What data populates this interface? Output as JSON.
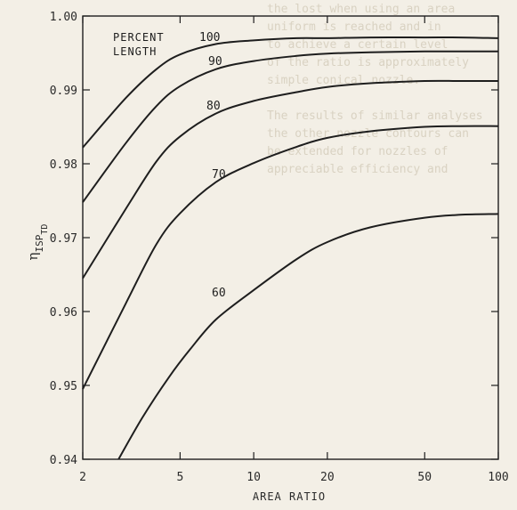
{
  "chart_data": {
    "type": "line",
    "title": "",
    "xlabel": "AREA RATIO",
    "ylabel": "η",
    "ylabel_sub": "ISP",
    "ylabel_subsub": "TD",
    "xscale": "log",
    "xlim": [
      2,
      100
    ],
    "ylim": [
      0.94,
      1.0
    ],
    "x_ticks": [
      2,
      5,
      10,
      20,
      50,
      100
    ],
    "x_tick_labels": [
      "2",
      "5",
      "10",
      "20",
      "50",
      "100"
    ],
    "y_ticks": [
      0.94,
      0.95,
      0.96,
      0.97,
      0.98,
      0.99,
      1.0
    ],
    "y_tick_labels": [
      "0.94",
      "0.95",
      "0.96",
      "0.97",
      "0.98",
      "0.99",
      "1.00"
    ],
    "grid": false,
    "legend_title_line1": "PERCENT",
    "legend_title_line2": "LENGTH",
    "series": [
      {
        "name": "100",
        "x": [
          2,
          3,
          4,
          5,
          7,
          10,
          15,
          20,
          30,
          50,
          70,
          100
        ],
        "y": [
          0.9822,
          0.9889,
          0.9928,
          0.9948,
          0.9962,
          0.9967,
          0.997,
          0.997,
          0.9971,
          0.9971,
          0.9971,
          0.997
        ]
      },
      {
        "name": "90",
        "x": [
          2,
          3,
          4,
          5,
          7,
          10,
          15,
          20,
          30,
          50,
          70,
          100
        ],
        "y": [
          0.9748,
          0.9828,
          0.9878,
          0.9905,
          0.9928,
          0.9939,
          0.9946,
          0.9949,
          0.9951,
          0.9952,
          0.9952,
          0.9952
        ]
      },
      {
        "name": "80",
        "x": [
          2,
          3,
          4,
          5,
          7,
          10,
          15,
          20,
          30,
          50,
          70,
          100
        ],
        "y": [
          0.9645,
          0.9739,
          0.9803,
          0.9837,
          0.9868,
          0.9885,
          0.9897,
          0.9904,
          0.9909,
          0.9912,
          0.9912,
          0.9912
        ]
      },
      {
        "name": "70",
        "x": [
          2,
          3,
          4,
          5,
          7,
          10,
          15,
          20,
          30,
          50,
          70,
          100
        ],
        "y": [
          0.9495,
          0.9611,
          0.9691,
          0.9733,
          0.9775,
          0.9801,
          0.9823,
          0.9835,
          0.9844,
          0.985,
          0.9851,
          0.9851
        ]
      },
      {
        "name": "60",
        "x": [
          2.8,
          3.5,
          4.5,
          5.5,
          7,
          10,
          15,
          20,
          30,
          50,
          70,
          100
        ],
        "y": [
          0.94,
          0.9456,
          0.9511,
          0.9549,
          0.9589,
          0.9629,
          0.9671,
          0.9694,
          0.9714,
          0.9727,
          0.9731,
          0.9732
        ]
      }
    ]
  },
  "background_text": [
    "the lost when using an area",
    "uniform is reached and in",
    "to achieve a certain level",
    "of the ratio is approximately",
    "simple conical nozzle.",
    "",
    "The results of similar analyses",
    "the other nozzle contours can",
    "be extended for nozzles of",
    "appreciable efficiency and"
  ]
}
